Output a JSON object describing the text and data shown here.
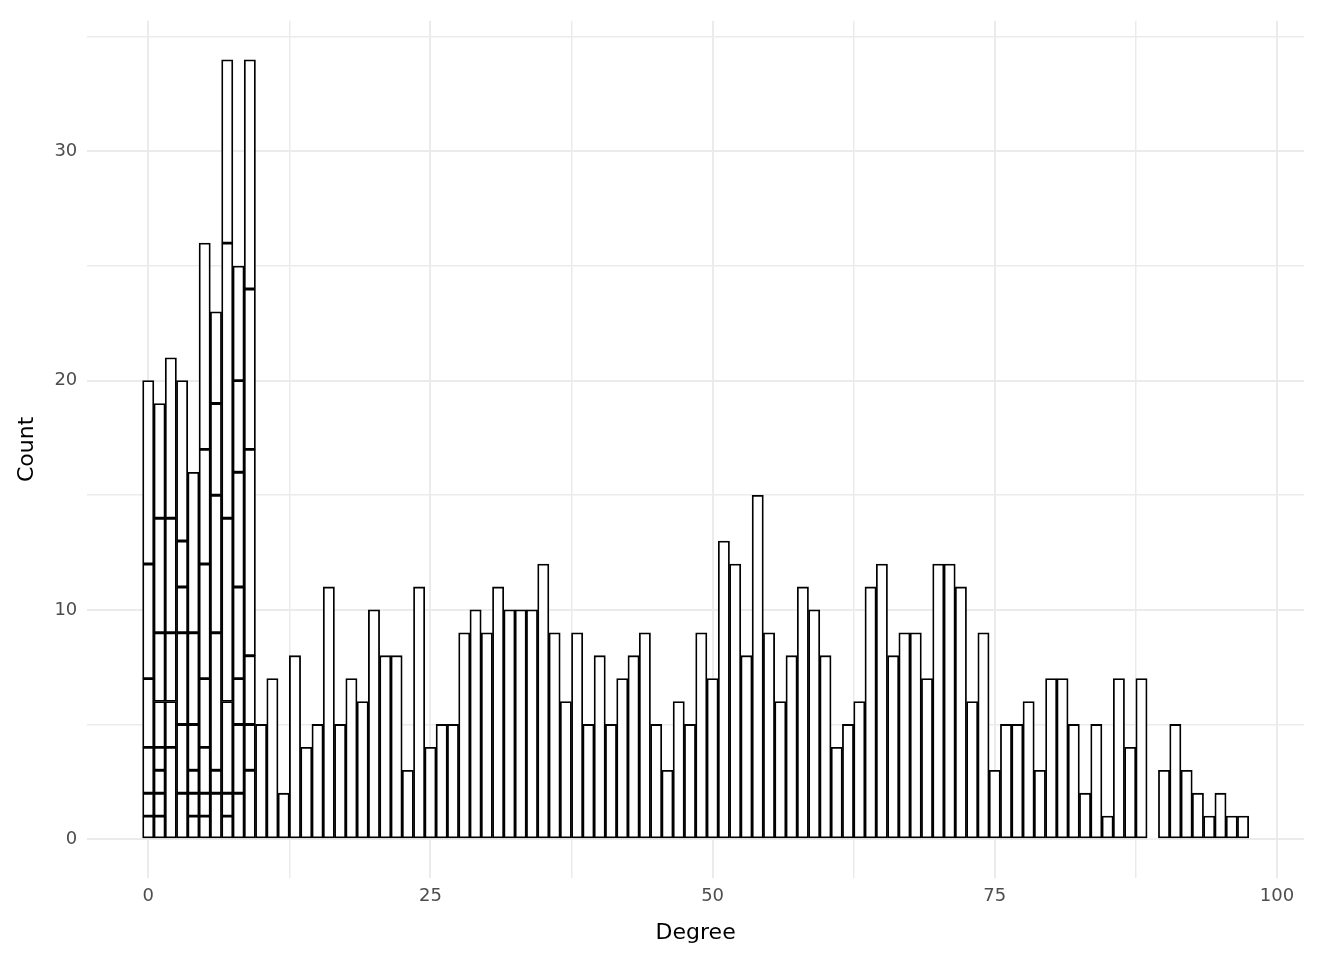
{
  "chart_data": {
    "type": "bar",
    "xlabel": "Degree",
    "ylabel": "Count",
    "stacked": true,
    "grid": true,
    "legend": false,
    "x": [
      0,
      1,
      2,
      3,
      4,
      5,
      6,
      7,
      8,
      9,
      10,
      11,
      12,
      13,
      14,
      15,
      16,
      17,
      18,
      19,
      20,
      21,
      22,
      23,
      24,
      25,
      26,
      27,
      28,
      29,
      30,
      31,
      32,
      33,
      34,
      35,
      36,
      37,
      38,
      39,
      40,
      41,
      42,
      43,
      44,
      45,
      46,
      47,
      48,
      49,
      50,
      51,
      52,
      53,
      54,
      55,
      56,
      57,
      58,
      59,
      60,
      61,
      62,
      63,
      64,
      65,
      66,
      67,
      68,
      69,
      70,
      71,
      72,
      73,
      74,
      75,
      76,
      77,
      78,
      79,
      80,
      81,
      82,
      83,
      84,
      85,
      86,
      87,
      88,
      89,
      90,
      91,
      92,
      93,
      94,
      95,
      96,
      97
    ],
    "series": [
      {
        "color": "#ffffff",
        "values": [
          1,
          1,
          4,
          2,
          1,
          1,
          2,
          1,
          2,
          3,
          5,
          7,
          2,
          8,
          4,
          5,
          11,
          5,
          7,
          6,
          10,
          8,
          8,
          3,
          11,
          4,
          5,
          5,
          9,
          10,
          9,
          11,
          10,
          10,
          10,
          12,
          9,
          6,
          9,
          5,
          8,
          5,
          7,
          8,
          9,
          5,
          3,
          6,
          5,
          9,
          7,
          13,
          12,
          8,
          15,
          9,
          6,
          8,
          11,
          10,
          8,
          4,
          5,
          6,
          11,
          12,
          8,
          9,
          9,
          7,
          12,
          12,
          11,
          6,
          9,
          3,
          5,
          5,
          6,
          3,
          7,
          7,
          5,
          2,
          5,
          1,
          7,
          4,
          7,
          0,
          3,
          5,
          3,
          2,
          1,
          2,
          1,
          1
        ]
      },
      {
        "color": "#ffffff",
        "values": [
          1,
          1,
          2,
          3,
          1,
          1,
          1,
          1,
          3,
          2,
          null,
          null,
          null,
          null,
          null,
          null,
          null,
          null,
          null,
          null,
          null,
          null,
          null,
          null,
          null,
          null,
          null,
          null,
          null,
          null,
          null,
          null,
          null,
          null,
          null,
          null,
          null,
          null,
          null,
          null,
          null,
          null,
          null,
          null,
          null,
          null,
          null,
          null,
          null,
          null,
          null,
          null,
          null,
          null,
          null,
          null,
          null,
          null,
          null,
          null,
          null,
          null,
          null,
          null,
          null,
          null,
          null,
          null,
          null,
          null,
          null,
          null,
          null,
          null,
          null,
          null,
          null,
          null,
          null,
          null,
          null,
          null,
          null,
          null,
          null,
          null,
          null,
          null,
          null,
          null,
          null,
          null,
          null,
          null,
          null,
          null,
          null,
          null
        ]
      },
      {
        "color": "#ffffff",
        "values": [
          2,
          1,
          3,
          4,
          1,
          2,
          6,
          4,
          2,
          3,
          null,
          null,
          null,
          null,
          null,
          null,
          null,
          null,
          null,
          null,
          null,
          null,
          null,
          null,
          null,
          null,
          null,
          null,
          null,
          null,
          null,
          null,
          null,
          null,
          null,
          null,
          null,
          null,
          null,
          null,
          null,
          null,
          null,
          null,
          null,
          null,
          null,
          null,
          null,
          null,
          null,
          null,
          null,
          null,
          null,
          null,
          null,
          null,
          null,
          null,
          null,
          null,
          null,
          null,
          null,
          null,
          null,
          null,
          null,
          null,
          null,
          null,
          null,
          null,
          null,
          null,
          null,
          null,
          null,
          null,
          null,
          null,
          null,
          null,
          null,
          null,
          null,
          null,
          null,
          null,
          null,
          null,
          null,
          null,
          null,
          null,
          null,
          null
        ]
      },
      {
        "color": "#ffffff",
        "values": [
          3,
          1,
          5,
          2,
          2,
          3,
          6,
          8,
          4,
          9,
          null,
          null,
          null,
          null,
          null,
          null,
          null,
          null,
          null,
          null,
          null,
          null,
          null,
          null,
          null,
          null,
          null,
          null,
          null,
          null,
          null,
          null,
          null,
          null,
          null,
          null,
          null,
          null,
          null,
          null,
          null,
          null,
          null,
          null,
          null,
          null,
          null,
          null,
          null,
          null,
          null,
          null,
          null,
          null,
          null,
          null,
          null,
          null,
          null,
          null,
          null,
          null,
          null,
          null,
          null,
          null,
          null,
          null,
          null,
          null,
          null,
          null,
          null,
          null,
          null,
          null,
          null,
          null,
          null,
          null,
          null,
          null,
          null,
          null,
          null,
          null,
          null,
          null,
          null,
          null,
          null,
          null,
          null,
          null,
          null,
          null,
          null,
          null
        ]
      },
      {
        "color": "#ffffff",
        "values": [
          5,
          2,
          7,
          2,
          4,
          5,
          4,
          12,
          5,
          7,
          null,
          null,
          null,
          null,
          null,
          null,
          null,
          null,
          null,
          null,
          null,
          null,
          null,
          null,
          null,
          null,
          null,
          null,
          null,
          null,
          null,
          null,
          null,
          null,
          null,
          null,
          null,
          null,
          null,
          null,
          null,
          null,
          null,
          null,
          null,
          null,
          null,
          null,
          null,
          null,
          null,
          null,
          null,
          null,
          null,
          null,
          null,
          null,
          null,
          null,
          null,
          null,
          null,
          null,
          null,
          null,
          null,
          null,
          null,
          null,
          null,
          null,
          null,
          null,
          null,
          null,
          null,
          null,
          null,
          null,
          null,
          null,
          null,
          null,
          null,
          null,
          null,
          null,
          null,
          null,
          null,
          null,
          null,
          null,
          null,
          null,
          null,
          null
        ]
      },
      {
        "color": "#ffffff",
        "values": [
          8,
          3,
          null,
          7,
          7,
          5,
          4,
          8,
          4,
          10,
          null,
          null,
          null,
          null,
          null,
          null,
          null,
          null,
          null,
          null,
          null,
          null,
          null,
          null,
          null,
          null,
          null,
          null,
          null,
          null,
          null,
          null,
          null,
          null,
          null,
          null,
          null,
          null,
          null,
          null,
          null,
          null,
          null,
          null,
          null,
          null,
          null,
          null,
          null,
          null,
          null,
          null,
          null,
          null,
          null,
          null,
          null,
          null,
          null,
          null,
          null,
          null,
          null,
          null,
          null,
          null,
          null,
          null,
          null,
          null,
          null,
          null,
          null,
          null,
          null,
          null,
          null,
          null,
          null,
          null,
          null,
          null,
          null,
          null,
          null,
          null,
          null,
          null,
          null,
          null,
          null,
          null,
          null,
          null,
          null,
          null,
          null,
          null
        ]
      },
      {
        "color": "#ffffff",
        "values": [
          null,
          5,
          null,
          null,
          null,
          9,
          null,
          null,
          5,
          null,
          null,
          null,
          null,
          null,
          null,
          null,
          null,
          null,
          null,
          null,
          null,
          null,
          null,
          null,
          null,
          null,
          null,
          null,
          null,
          null,
          null,
          null,
          null,
          null,
          null,
          null,
          null,
          null,
          null,
          null,
          null,
          null,
          null,
          null,
          null,
          null,
          null,
          null,
          null,
          null,
          null,
          null,
          null,
          null,
          null,
          null,
          null,
          null,
          null,
          null,
          null,
          null,
          null,
          null,
          null,
          null,
          null,
          null,
          null,
          null,
          null,
          null,
          null,
          null,
          null,
          null,
          null,
          null,
          null,
          null,
          null,
          null,
          null,
          null,
          null,
          null,
          null,
          null,
          null,
          null,
          null,
          null,
          null,
          null,
          null,
          null,
          null,
          null
        ]
      },
      {
        "color": "#ffffff",
        "values": [
          null,
          5,
          null,
          null,
          null,
          null,
          null,
          null,
          null,
          null,
          null,
          null,
          null,
          null,
          null,
          null,
          null,
          null,
          null,
          null,
          null,
          null,
          null,
          null,
          null,
          null,
          null,
          null,
          null,
          null,
          null,
          null,
          null,
          null,
          null,
          null,
          null,
          null,
          null,
          null,
          null,
          null,
          null,
          null,
          null,
          null,
          null,
          null,
          null,
          null,
          null,
          null,
          null,
          null,
          null,
          null,
          null,
          null,
          null,
          null,
          null,
          null,
          null,
          null,
          null,
          null,
          null,
          null,
          null,
          null,
          null,
          null,
          null,
          null,
          null,
          null,
          null,
          null,
          null,
          null,
          null,
          null,
          null,
          null,
          null,
          null,
          null,
          null,
          null,
          null,
          null,
          null,
          null,
          null,
          null,
          null,
          null,
          null
        ]
      }
    ],
    "xlim": [
      -5.4,
      102.4
    ],
    "ylim": [
      -1.7,
      35.7
    ],
    "xticks": [
      0,
      {
        "value": 12.5,
        "label": null
      },
      25,
      {
        "value": 37.5,
        "label": null
      },
      50,
      {
        "value": 62.5,
        "label": null
      },
      75,
      {
        "value": 87.5,
        "label": null
      },
      100
    ],
    "yticks": [
      0,
      {
        "value": 5,
        "label": null
      },
      10,
      {
        "value": 15,
        "label": null
      },
      20,
      {
        "value": 25,
        "label": null
      },
      30,
      {
        "value": 35,
        "label": null
      }
    ]
  }
}
